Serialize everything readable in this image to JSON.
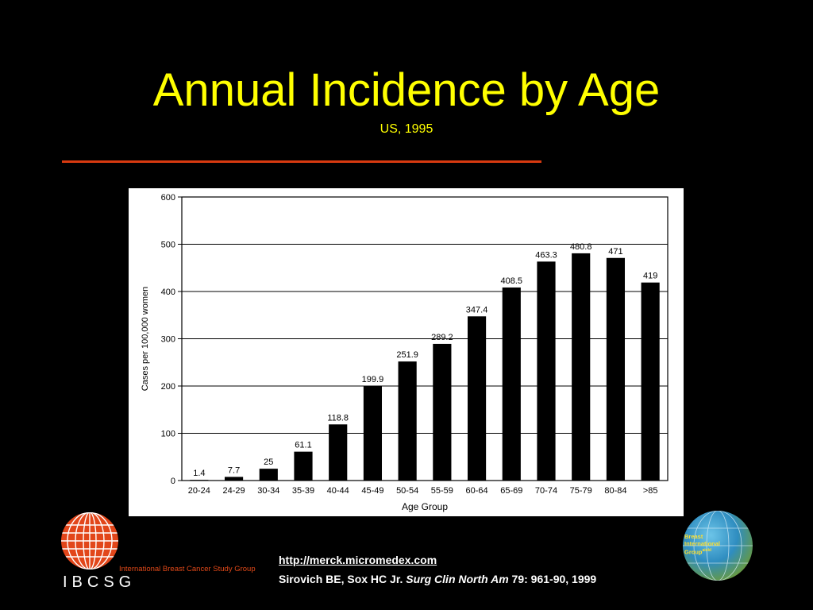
{
  "slide": {
    "title": "Annual Incidence by Age",
    "subtitle": "US, 1995"
  },
  "colors": {
    "background": "#000000",
    "title": "#ffff00",
    "rule": "#d83a10",
    "bar": "#000000",
    "chart_bg": "#ffffff"
  },
  "chart_data": {
    "type": "bar",
    "categories": [
      "20-24",
      "24-29",
      "30-34",
      "35-39",
      "40-44",
      "45-49",
      "50-54",
      "55-59",
      "60-64",
      "65-69",
      "70-74",
      "75-79",
      "80-84",
      ">85"
    ],
    "values": [
      1.4,
      7.7,
      25,
      61.1,
      118.8,
      199.9,
      251.9,
      289.2,
      347.4,
      408.5,
      463.3,
      480.8,
      471,
      419
    ],
    "data_labels": [
      "1.4",
      "7.7",
      "25",
      "61.1",
      "118.8",
      "199.9",
      "251.9",
      "289.2",
      "347.4",
      "408.5",
      "463.3",
      "480.8",
      "471",
      "419"
    ],
    "xlabel": "Age Group",
    "ylabel": "Cases per 100,000 women",
    "ylim": [
      0,
      600
    ],
    "yticks": [
      "0",
      "100",
      "200",
      "300",
      "400",
      "500",
      "600"
    ],
    "grid": "horizontal"
  },
  "footer": {
    "link": "http://merck.micromedex.com",
    "citation_authors": "Sirovich BE, Sox HC Jr.",
    "citation_journal": "Surg Clin North Am",
    "citation_details": "79: 961-90, 1999",
    "ibcsg_letters": "IBCSG",
    "ibcsg_name": "International Breast Cancer Study Group",
    "big_name": [
      "Breast",
      "International",
      "Group"
    ],
    "big_suffix": "aisbl"
  }
}
